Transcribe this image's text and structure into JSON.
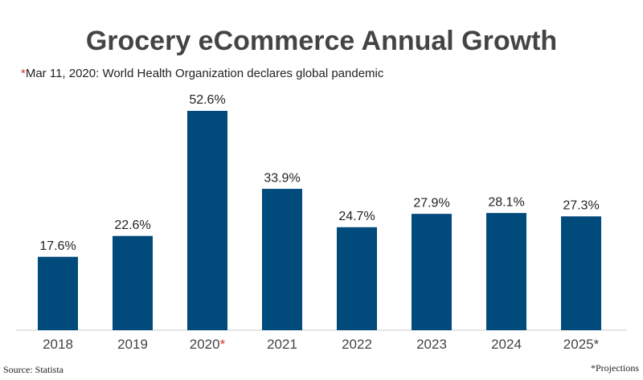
{
  "chart_data": {
    "type": "bar",
    "title": "Grocery eCommerce Annual Growth",
    "annotation_marker": "*",
    "annotation": "Mar 11, 2020: World Health Organization declares global pandemic",
    "categories": [
      "2018",
      "2019",
      "2020",
      "2021",
      "2022",
      "2023",
      "2024",
      "2025*"
    ],
    "values": [
      17.6,
      22.6,
      52.6,
      33.9,
      24.7,
      27.9,
      28.1,
      27.3
    ],
    "value_labels": [
      "17.6%",
      "22.6%",
      "52.6%",
      "33.9%",
      "24.7%",
      "27.9%",
      "28.1%",
      "27.3%"
    ],
    "color": "#004a7c",
    "marker_color": "#d9352b",
    "source": "Source: Statista",
    "footnote": "*Projections"
  }
}
